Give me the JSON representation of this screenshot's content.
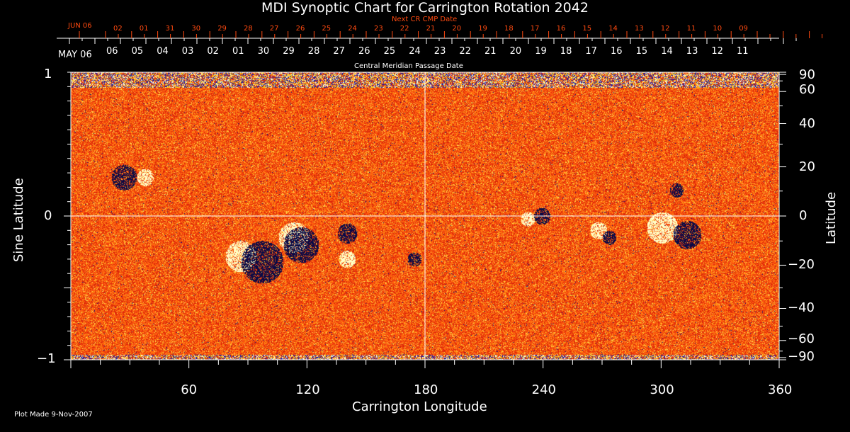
{
  "chart_data": {
    "type": "heatmap",
    "title": "MDI Synoptic Chart for Carrington Rotation 2042",
    "xlabel": "Carrington Longitude",
    "ylabel_left": "Sine Latitude",
    "ylabel_right": "Latitude",
    "xlim": [
      0,
      360
    ],
    "ylim": [
      -1,
      1
    ],
    "x_ticks": [
      60,
      120,
      180,
      240,
      300,
      360
    ],
    "y_ticks_left": [
      "1",
      "0",
      "−1"
    ],
    "y_ticks_right": [
      90,
      60,
      40,
      20,
      0,
      -20,
      -40,
      -60,
      -90
    ],
    "top_axis": {
      "title": "Central Meridian Passage Date",
      "start_label": "MAY 06",
      "dates": [
        "06",
        "05",
        "04",
        "03",
        "02",
        "01",
        "30",
        "29",
        "28",
        "27",
        "26",
        "25",
        "24",
        "23",
        "22",
        "21",
        "20",
        "19",
        "18",
        "17",
        "16",
        "15",
        "14",
        "13",
        "12",
        "11"
      ]
    },
    "next_axis": {
      "title": "Next CR CMP Date",
      "start_label": "JUN 06",
      "dates": [
        "02",
        "01",
        "31",
        "30",
        "29",
        "28",
        "27",
        "26",
        "25",
        "24",
        "23",
        "22",
        "21",
        "20",
        "19",
        "18",
        "17",
        "16",
        "15",
        "14",
        "13",
        "12",
        "11",
        "10",
        "09"
      ]
    },
    "footer": "Plot Made  9-Nov-2007",
    "colors": {
      "background": "#000000",
      "field": "#ff4a10",
      "next_axis": "#ff4a10"
    }
  }
}
